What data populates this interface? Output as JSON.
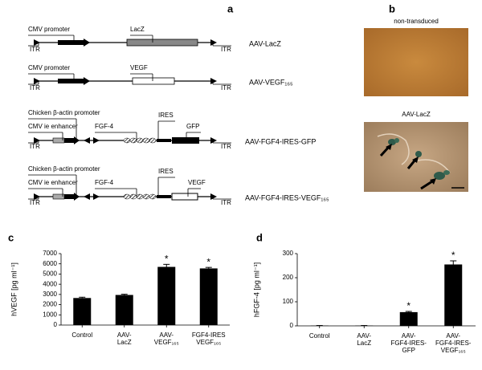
{
  "panel_labels": [
    "a",
    "b",
    "c",
    "d"
  ],
  "panel_a": {
    "constructs": [
      {
        "name": "AAV-LacZ",
        "labels": [
          "CMV promoter",
          "ITR",
          "LacZ",
          "ITR"
        ]
      },
      {
        "name": "AAV-VEGF₁₆₅",
        "labels": [
          "CMV promoter",
          "ITR",
          "VEGF",
          "ITR"
        ]
      },
      {
        "name": "AAV-FGF4-IRES-GFP",
        "labels": [
          "Chicken β-actin promoter",
          "CMV ie enhancer",
          "ITR",
          "FGF-4",
          "IRES",
          "GFP",
          "ITR"
        ]
      },
      {
        "name": "AAV-FGF4-IRES-VEGF₁₆₅",
        "labels": [
          "Chicken β-actin promoter",
          "CMV ie enhancer",
          "ITR",
          "FGF-4",
          "IRES",
          "VEGF",
          "ITR"
        ]
      }
    ]
  },
  "panel_b": {
    "images": [
      {
        "label": "non-transduced"
      },
      {
        "label": "AAV-LacZ"
      }
    ]
  },
  "chart_data": [
    {
      "type": "bar",
      "ylabel": "hVEGF [pg ml⁻¹]",
      "categories": [
        [
          "Control"
        ],
        [
          "AAV-",
          "LacZ"
        ],
        [
          "AAV-",
          "VEGF₁₆₅"
        ],
        [
          "FGF4-IRES",
          "VEGF₁₆₅"
        ]
      ],
      "values": [
        2650,
        2950,
        5700,
        5550
      ],
      "errors": [
        80,
        70,
        250,
        100
      ],
      "color": "#000000",
      "annotations": [
        {
          "category": 2,
          "text": "*"
        },
        {
          "category": 3,
          "text": "*"
        }
      ],
      "ylim": [
        0,
        7000
      ],
      "yticks": [
        0,
        1000,
        2000,
        3000,
        4000,
        5000,
        6000,
        7000
      ]
    },
    {
      "type": "bar",
      "ylabel": "hFGF-4 [pg ml⁻¹]",
      "categories": [
        [
          "Control"
        ],
        [
          "AAV-",
          "LacZ"
        ],
        [
          "AAV-",
          "FGF4-IRES-",
          "GFP"
        ],
        [
          "AAV-",
          "FGF4-IRES-",
          "VEGF₁₆₅"
        ]
      ],
      "values": [
        1,
        1,
        57,
        255
      ],
      "errors": [
        0.5,
        0.5,
        3,
        15
      ],
      "color": "#000000",
      "annotations": [
        {
          "category": 2,
          "text": "*"
        },
        {
          "category": 3,
          "text": "*"
        }
      ],
      "ylim": [
        0,
        300
      ],
      "yticks": [
        0,
        100,
        200,
        300
      ]
    }
  ]
}
